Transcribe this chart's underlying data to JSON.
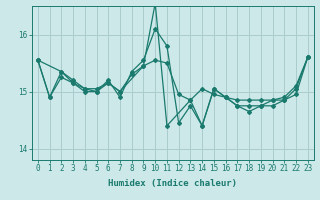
{
  "title": "",
  "xlabel": "Humidex (Indice chaleur)",
  "ylabel": "",
  "bg_color": "#cce8e8",
  "grid_color": "#aacccc",
  "line_color": "#1a7a6e",
  "xlim": [
    -0.5,
    23.5
  ],
  "ylim": [
    13.8,
    16.5
  ],
  "yticks": [
    14,
    15,
    16
  ],
  "xticks": [
    0,
    1,
    2,
    3,
    4,
    5,
    6,
    7,
    8,
    9,
    10,
    11,
    12,
    13,
    14,
    15,
    16,
    17,
    18,
    19,
    20,
    21,
    22,
    23
  ],
  "line1_x": [
    0,
    1,
    2,
    3,
    4,
    5,
    6,
    7,
    8,
    9,
    10,
    11,
    12,
    13,
    14,
    15,
    16,
    17,
    18,
    19,
    20,
    21,
    22,
    23
  ],
  "line1_y": [
    15.55,
    14.9,
    15.35,
    15.2,
    15.05,
    15.05,
    15.15,
    15.0,
    15.3,
    15.45,
    15.55,
    15.5,
    14.95,
    14.85,
    15.05,
    14.95,
    14.9,
    14.85,
    14.85,
    14.85,
    14.85,
    14.9,
    15.1,
    15.6
  ],
  "line2_x": [
    0,
    1,
    2,
    3,
    4,
    5,
    6,
    7,
    8,
    9,
    10,
    11,
    12,
    13,
    14,
    15,
    16,
    17,
    18,
    19,
    20,
    21,
    22,
    23
  ],
  "line2_y": [
    15.55,
    14.9,
    15.25,
    15.15,
    15.0,
    15.0,
    15.2,
    14.9,
    15.35,
    15.55,
    16.1,
    15.8,
    14.45,
    14.75,
    14.4,
    15.05,
    14.9,
    14.75,
    14.75,
    14.75,
    14.85,
    14.85,
    15.05,
    15.6
  ],
  "line3_x": [
    0,
    2,
    3,
    4,
    5,
    6,
    7,
    9,
    10,
    11,
    13,
    14,
    15,
    16,
    17,
    18,
    19,
    20,
    21,
    22,
    23
  ],
  "line3_y": [
    15.55,
    15.35,
    15.15,
    15.05,
    15.0,
    15.15,
    15.0,
    15.45,
    16.55,
    14.4,
    14.85,
    14.4,
    15.05,
    14.9,
    14.75,
    14.65,
    14.75,
    14.75,
    14.85,
    14.95,
    15.6
  ],
  "marker": "D",
  "markersize": 2.0,
  "linewidth": 0.9
}
